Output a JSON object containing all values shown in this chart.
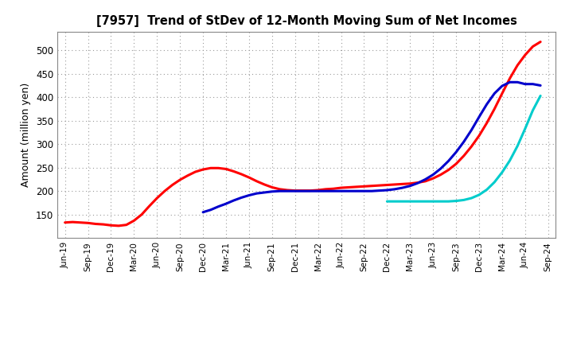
{
  "title": "[7957]  Trend of StDev of 12-Month Moving Sum of Net Incomes",
  "ylabel": "Amount (million yen)",
  "background_color": "#ffffff",
  "plot_bg_color": "#ffffff",
  "grid_color": "#999999",
  "ylim": [
    100,
    540
  ],
  "yticks": [
    150,
    200,
    250,
    300,
    350,
    400,
    450,
    500
  ],
  "series": {
    "3years": {
      "color": "#ff0000",
      "x": [
        0,
        1,
        2,
        3,
        4,
        5,
        6,
        7,
        8,
        9,
        10,
        11,
        12,
        13,
        14,
        15,
        16,
        17,
        18,
        19,
        20,
        21,
        22,
        23,
        24,
        25,
        26,
        27,
        28,
        29,
        30,
        31,
        32,
        33,
        34,
        35,
        36,
        37,
        38,
        39,
        40,
        41,
        42,
        43,
        44,
        45,
        46,
        47,
        48,
        49,
        50,
        51,
        52,
        53,
        54,
        55,
        56,
        57,
        58,
        59,
        60,
        61,
        62
      ],
      "y": [
        133,
        134,
        133,
        132,
        130,
        129,
        127,
        126,
        128,
        137,
        150,
        168,
        185,
        200,
        213,
        224,
        233,
        241,
        246,
        249,
        249,
        247,
        242,
        236,
        229,
        221,
        214,
        208,
        204,
        202,
        201,
        201,
        201,
        202,
        204,
        205,
        207,
        208,
        209,
        210,
        211,
        212,
        213,
        214,
        215,
        216,
        218,
        221,
        227,
        235,
        245,
        258,
        275,
        295,
        318,
        345,
        375,
        408,
        440,
        468,
        490,
        508,
        518
      ]
    },
    "5years": {
      "color": "#0000cc",
      "x": [
        18,
        19,
        20,
        21,
        22,
        23,
        24,
        25,
        26,
        27,
        28,
        29,
        30,
        31,
        32,
        33,
        34,
        35,
        36,
        37,
        38,
        39,
        40,
        41,
        42,
        43,
        44,
        45,
        46,
        47,
        48,
        49,
        50,
        51,
        52,
        53,
        54,
        55,
        56,
        57,
        58,
        59,
        60,
        61,
        62
      ],
      "y": [
        155,
        160,
        167,
        173,
        180,
        186,
        191,
        195,
        197,
        199,
        200,
        200,
        200,
        200,
        200,
        200,
        200,
        200,
        200,
        200,
        200,
        200,
        200,
        201,
        202,
        204,
        207,
        211,
        217,
        225,
        235,
        248,
        264,
        283,
        305,
        330,
        358,
        385,
        408,
        424,
        432,
        432,
        428,
        428,
        425
      ]
    },
    "7years": {
      "color": "#00cccc",
      "x": [
        42,
        43,
        44,
        45,
        46,
        47,
        48,
        49,
        50,
        51,
        52,
        53,
        54,
        55,
        56,
        57,
        58,
        59,
        60,
        61,
        62
      ],
      "y": [
        178,
        178,
        178,
        178,
        178,
        178,
        178,
        178,
        178,
        179,
        181,
        185,
        192,
        203,
        219,
        240,
        265,
        296,
        333,
        372,
        403
      ]
    },
    "10years": {
      "color": "#006600",
      "x": [],
      "y": []
    }
  },
  "xtick_labels": [
    "Jun-19",
    "Sep-19",
    "Dec-19",
    "Mar-20",
    "Jun-20",
    "Sep-20",
    "Dec-20",
    "Mar-21",
    "Jun-21",
    "Sep-21",
    "Dec-21",
    "Mar-22",
    "Jun-22",
    "Sep-22",
    "Dec-22",
    "Mar-23",
    "Jun-23",
    "Sep-23",
    "Dec-23",
    "Mar-24",
    "Jun-24",
    "Sep-24"
  ],
  "xtick_positions": [
    0,
    3,
    6,
    9,
    12,
    15,
    18,
    21,
    24,
    27,
    30,
    33,
    36,
    39,
    42,
    45,
    48,
    51,
    54,
    57,
    60,
    63
  ],
  "xlim": [
    -1,
    64
  ]
}
